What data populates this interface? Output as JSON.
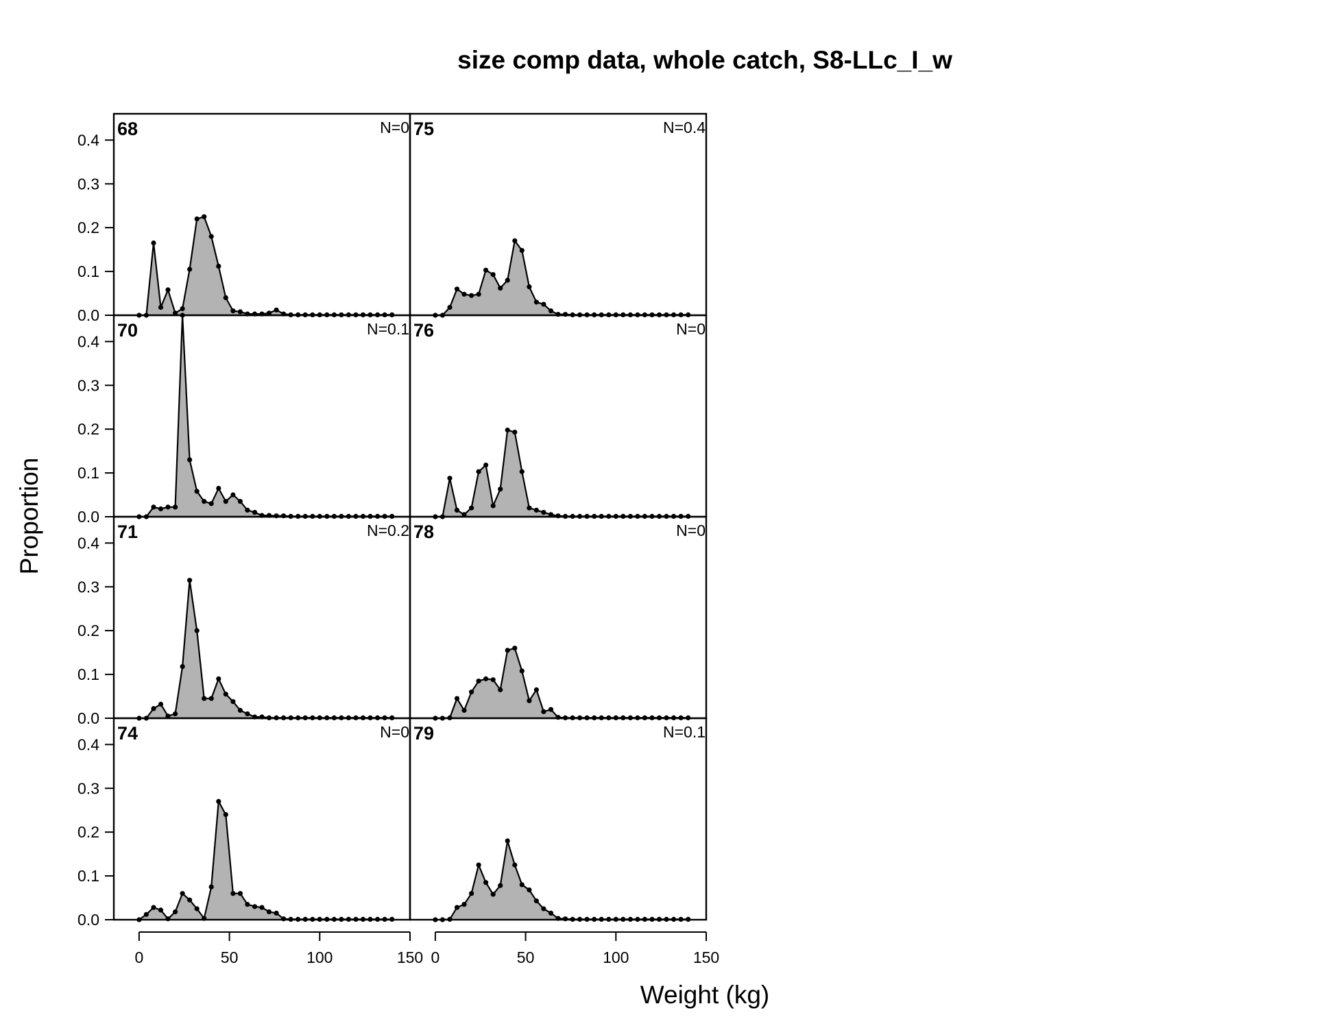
{
  "chart_data": {
    "type": "area",
    "title": "size comp data, whole catch, S8-LLc_I_w",
    "xlabel": "Weight (kg)",
    "ylabel": "Proportion",
    "xlim": [
      -14,
      150
    ],
    "ylim": [
      0,
      0.46
    ],
    "x_ticks": [
      "0",
      "50",
      "100",
      "150"
    ],
    "y_ticks": [
      "0.0",
      "0.1",
      "0.2",
      "0.3",
      "0.4"
    ],
    "colors": {
      "fill": "#b3b3b3",
      "line": "#000000",
      "frame": "#000000"
    },
    "grid": false,
    "layout": "4 rows x 2 columns, column-major",
    "x": [
      0,
      4,
      8,
      12,
      16,
      20,
      24,
      28,
      32,
      36,
      40,
      44,
      48,
      52,
      56,
      60,
      64,
      68,
      72,
      76,
      80,
      84,
      88,
      92,
      96,
      100,
      104,
      108,
      112,
      116,
      120,
      124,
      128,
      132,
      136,
      140
    ],
    "panels": [
      {
        "label": "68",
        "n": "N=0",
        "values": [
          0,
          0,
          0.165,
          0.018,
          0.058,
          0.005,
          0.015,
          0.105,
          0.22,
          0.225,
          0.18,
          0.112,
          0.04,
          0.01,
          0.008,
          0.003,
          0.003,
          0.003,
          0.005,
          0.012,
          0.003,
          0.001,
          0.001,
          0.001,
          0.001,
          0.001,
          0.001,
          0.001,
          0.001,
          0.001,
          0.001,
          0.001,
          0.001,
          0.001,
          0.001,
          0.001
        ]
      },
      {
        "label": "70",
        "n": "N=0.1",
        "values": [
          0,
          0,
          0.022,
          0.018,
          0.022,
          0.022,
          0.46,
          0.13,
          0.058,
          0.035,
          0.03,
          0.065,
          0.035,
          0.05,
          0.035,
          0.015,
          0.01,
          0.003,
          0.003,
          0.002,
          0.002,
          0.001,
          0.001,
          0.001,
          0.001,
          0.001,
          0.001,
          0.001,
          0.001,
          0.001,
          0.001,
          0.001,
          0.001,
          0.001,
          0.001,
          0.001
        ]
      },
      {
        "label": "71",
        "n": "N=0.2",
        "values": [
          0,
          0,
          0.022,
          0.032,
          0.005,
          0.01,
          0.118,
          0.315,
          0.2,
          0.045,
          0.045,
          0.09,
          0.055,
          0.038,
          0.018,
          0.01,
          0.003,
          0.003,
          0.001,
          0.001,
          0.001,
          0.001,
          0.001,
          0.001,
          0.001,
          0.001,
          0.001,
          0.001,
          0.001,
          0.001,
          0.001,
          0.001,
          0.001,
          0.001,
          0.001,
          0.001
        ]
      },
      {
        "label": "74",
        "n": "N=0",
        "values": [
          0,
          0.012,
          0.028,
          0.022,
          0.002,
          0.018,
          0.06,
          0.045,
          0.025,
          0.003,
          0.075,
          0.27,
          0.24,
          0.06,
          0.06,
          0.035,
          0.03,
          0.028,
          0.018,
          0.015,
          0.002,
          0.001,
          0.001,
          0.001,
          0.001,
          0.001,
          0.001,
          0.001,
          0.001,
          0.001,
          0.001,
          0.001,
          0.001,
          0.001,
          0.001,
          0.001
        ]
      },
      {
        "label": "75",
        "n": "N=0.4",
        "values": [
          0,
          0,
          0.018,
          0.06,
          0.048,
          0.045,
          0.048,
          0.103,
          0.093,
          0.062,
          0.08,
          0.17,
          0.148,
          0.065,
          0.03,
          0.025,
          0.01,
          0.002,
          0.002,
          0.001,
          0.001,
          0.001,
          0.001,
          0.001,
          0.001,
          0.001,
          0.001,
          0.001,
          0.001,
          0.001,
          0.001,
          0.001,
          0.001,
          0.001,
          0.001,
          0.001
        ]
      },
      {
        "label": "76",
        "n": "N=0",
        "values": [
          0,
          0,
          0.088,
          0.015,
          0.005,
          0.02,
          0.103,
          0.118,
          0.025,
          0.063,
          0.198,
          0.193,
          0.103,
          0.02,
          0.015,
          0.01,
          0.005,
          0.002,
          0.001,
          0.001,
          0.001,
          0.001,
          0.001,
          0.001,
          0.001,
          0.001,
          0.001,
          0.001,
          0.001,
          0.001,
          0.001,
          0.001,
          0.001,
          0.001,
          0.001,
          0.001
        ]
      },
      {
        "label": "78",
        "n": "N=0",
        "values": [
          0,
          0,
          0.001,
          0.045,
          0.018,
          0.06,
          0.085,
          0.09,
          0.088,
          0.065,
          0.155,
          0.16,
          0.108,
          0.04,
          0.065,
          0.015,
          0.02,
          0.002,
          0.001,
          0.001,
          0.001,
          0.001,
          0.001,
          0.001,
          0.001,
          0.001,
          0.001,
          0.001,
          0.001,
          0.001,
          0.001,
          0.001,
          0.001,
          0.001,
          0.001,
          0.001
        ]
      },
      {
        "label": "79",
        "n": "N=0.1",
        "values": [
          0,
          0,
          0.001,
          0.028,
          0.035,
          0.06,
          0.125,
          0.085,
          0.058,
          0.078,
          0.18,
          0.125,
          0.08,
          0.068,
          0.043,
          0.025,
          0.015,
          0.003,
          0.002,
          0.001,
          0.001,
          0.001,
          0.001,
          0.001,
          0.001,
          0.001,
          0.001,
          0.001,
          0.001,
          0.001,
          0.001,
          0.001,
          0.001,
          0.001,
          0.001,
          0.001
        ]
      }
    ]
  }
}
